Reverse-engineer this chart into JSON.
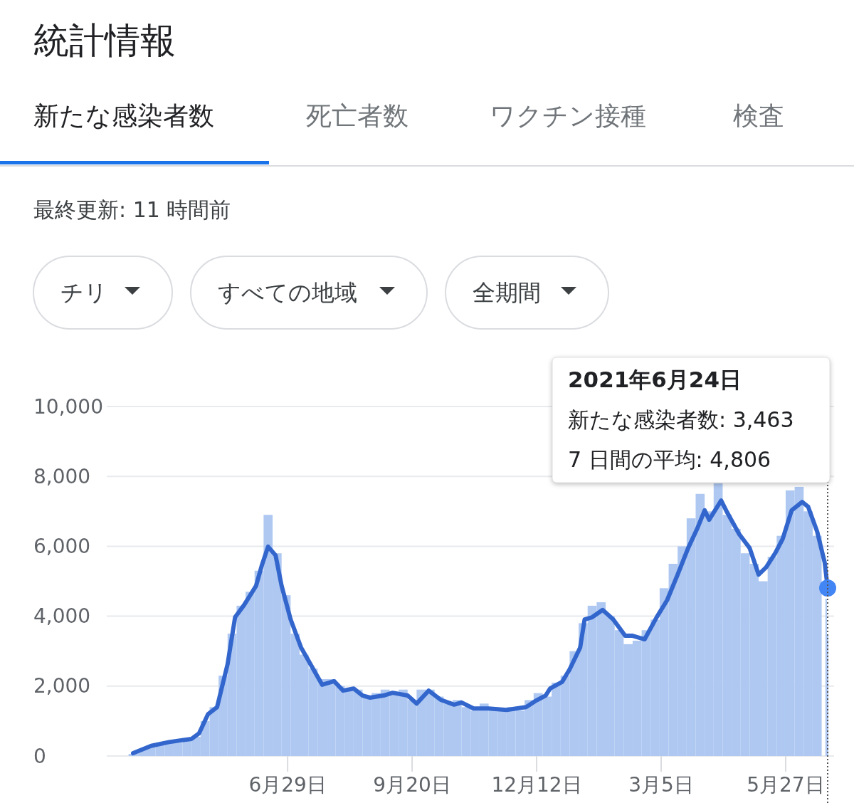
{
  "chart_data": {
    "type": "bar",
    "title": "統計情報",
    "subtitle": "最終更新: 11 時間前",
    "annotations": [
      "新たな感染者数",
      "死亡者数",
      "ワクチン接種",
      "検査",
      "チリ",
      "すべての地域",
      "全期間",
      "2021年6月24日",
      "新たな感染者数: 3,463",
      "7 日間の平均: 4,806"
    ],
    "xlim": [
      "2020-03-18",
      "2021-06-24"
    ],
    "xticks": [
      {
        "value": "2020-06-29",
        "label": "6月29日"
      },
      {
        "value": "2020-09-20",
        "label": "9月20日"
      },
      {
        "value": "2020-12-12",
        "label": "12月12日"
      },
      {
        "value": "2021-03-05",
        "label": "3月5日"
      },
      {
        "value": "2021-05-27",
        "label": "5月27日"
      }
    ],
    "ylim": [
      0,
      10000
    ],
    "yticks": [
      0,
      {
        "value": 2000,
        "label": "2,000"
      },
      {
        "value": 4000,
        "label": "4,000"
      },
      {
        "value": 6000,
        "label": "6,000"
      },
      {
        "value": 8000,
        "label": "8,000"
      },
      {
        "value": 10000,
        "label": "10,000"
      }
    ],
    "grid": "y",
    "ref_lines": [
      {
        "axis": "x",
        "value": "2021-06-24",
        "line_style": "dotted",
        "color": "#555555"
      }
    ],
    "series": [
      {
        "color": "#aec8f2",
        "x": [
          "2020-03-18",
          "2020-03-24",
          "2020-03-30",
          "2020-04-05",
          "2020-04-11",
          "2020-04-17",
          "2020-04-23",
          "2020-04-29",
          "2020-05-05",
          "2020-05-11",
          "2020-05-17",
          "2020-05-23",
          "2020-05-29",
          "2020-06-04",
          "2020-06-10",
          "2020-06-16",
          "2020-06-22",
          "2020-06-28",
          "2020-07-04",
          "2020-07-10",
          "2020-07-16",
          "2020-07-22",
          "2020-07-28",
          "2020-08-03",
          "2020-08-09",
          "2020-08-15",
          "2020-08-21",
          "2020-08-27",
          "2020-09-02",
          "2020-09-08",
          "2020-09-14",
          "2020-09-20",
          "2020-09-26",
          "2020-10-02",
          "2020-10-08",
          "2020-10-14",
          "2020-10-20",
          "2020-10-26",
          "2020-11-01",
          "2020-11-07",
          "2020-11-13",
          "2020-11-19",
          "2020-11-25",
          "2020-12-01",
          "2020-12-07",
          "2020-12-13",
          "2020-12-19",
          "2020-12-25",
          "2020-12-31",
          "2021-01-06",
          "2021-01-12",
          "2021-01-18",
          "2021-01-24",
          "2021-01-30",
          "2021-02-05",
          "2021-02-11",
          "2021-02-17",
          "2021-02-23",
          "2021-03-01",
          "2021-03-07",
          "2021-03-13",
          "2021-03-19",
          "2021-03-25",
          "2021-03-31",
          "2021-04-06",
          "2021-04-12",
          "2021-04-18",
          "2021-04-24",
          "2021-04-30",
          "2021-05-06",
          "2021-05-12",
          "2021-05-18",
          "2021-05-24",
          "2021-05-30",
          "2021-06-05",
          "2021-06-11",
          "2021-06-17",
          "2021-06-23",
          "2021-06-24"
        ],
        "values": [
          60,
          200,
          300,
          350,
          420,
          380,
          480,
          550,
          1000,
          1400,
          2300,
          3500,
          4300,
          4700,
          5300,
          6900,
          5800,
          4600,
          3500,
          2900,
          2500,
          2200,
          2200,
          2000,
          1900,
          1900,
          1700,
          1800,
          1900,
          1800,
          1900,
          1600,
          1900,
          1900,
          1700,
          1500,
          1600,
          1400,
          1300,
          1500,
          1400,
          1300,
          1400,
          1300,
          1600,
          1800,
          1700,
          2100,
          2300,
          3000,
          3800,
          4300,
          4400,
          4000,
          3600,
          3200,
          3300,
          3600,
          3900,
          4800,
          5500,
          6000,
          6800,
          7500,
          7000,
          7800,
          6900,
          6500,
          5800,
          5500,
          5000,
          5700,
          6300,
          7600,
          7700,
          7000,
          6300,
          4500,
          3463
        ]
      },
      {
        "type": "line",
        "color": "#3366cc",
        "x": [
          "2020-03-18",
          "2020-03-30",
          "2020-04-11",
          "2020-04-26",
          "2020-05-01",
          "2020-05-07",
          "2020-05-13",
          "2020-05-20",
          "2020-05-25",
          "2020-05-31",
          "2020-06-08",
          "2020-06-12",
          "2020-06-16",
          "2020-06-21",
          "2020-06-25",
          "2020-07-01",
          "2020-07-08",
          "2020-07-17",
          "2020-07-22",
          "2020-07-30",
          "2020-08-05",
          "2020-08-12",
          "2020-08-18",
          "2020-08-23",
          "2020-09-01",
          "2020-09-07",
          "2020-09-17",
          "2020-09-23",
          "2020-10-01",
          "2020-10-09",
          "2020-10-18",
          "2020-10-23",
          "2020-10-31",
          "2020-11-10",
          "2020-11-22",
          "2020-12-05",
          "2020-12-11",
          "2020-12-18",
          "2020-12-21",
          "2020-12-29",
          "2021-01-03",
          "2021-01-10",
          "2021-01-13",
          "2021-01-18",
          "2021-01-25",
          "2021-02-01",
          "2021-02-09",
          "2021-02-14",
          "2021-02-22",
          "2021-03-02",
          "2021-03-09",
          "2021-03-16",
          "2021-03-23",
          "2021-03-29",
          "2021-04-03",
          "2021-04-06",
          "2021-04-14",
          "2021-04-18",
          "2021-04-26",
          "2021-05-03",
          "2021-05-09",
          "2021-05-14",
          "2021-05-20",
          "2021-05-25",
          "2021-05-31",
          "2021-06-07",
          "2021-06-11",
          "2021-06-17",
          "2021-06-22",
          "2021-06-24"
        ],
        "values": [
          80,
          290,
          400,
          490,
          650,
          1200,
          1400,
          2630,
          3970,
          4320,
          4870,
          5480,
          5990,
          5740,
          4870,
          3910,
          3100,
          2420,
          2040,
          2140,
          1870,
          1930,
          1730,
          1670,
          1730,
          1810,
          1730,
          1500,
          1870,
          1610,
          1470,
          1530,
          1360,
          1360,
          1320,
          1400,
          1570,
          1730,
          1930,
          2120,
          2480,
          3100,
          3910,
          3970,
          4180,
          3910,
          3440,
          3440,
          3340,
          3970,
          4460,
          5190,
          5950,
          6500,
          7030,
          6760,
          7310,
          6970,
          6350,
          5950,
          5190,
          5400,
          5800,
          6210,
          7030,
          7270,
          7130,
          6420,
          5540,
          4806
        ]
      },
      {
        "type": "scatter",
        "color": "#4285f4",
        "marker": "circle",
        "x": [
          "2021-06-24"
        ],
        "values": [
          4806
        ]
      }
    ]
  }
}
